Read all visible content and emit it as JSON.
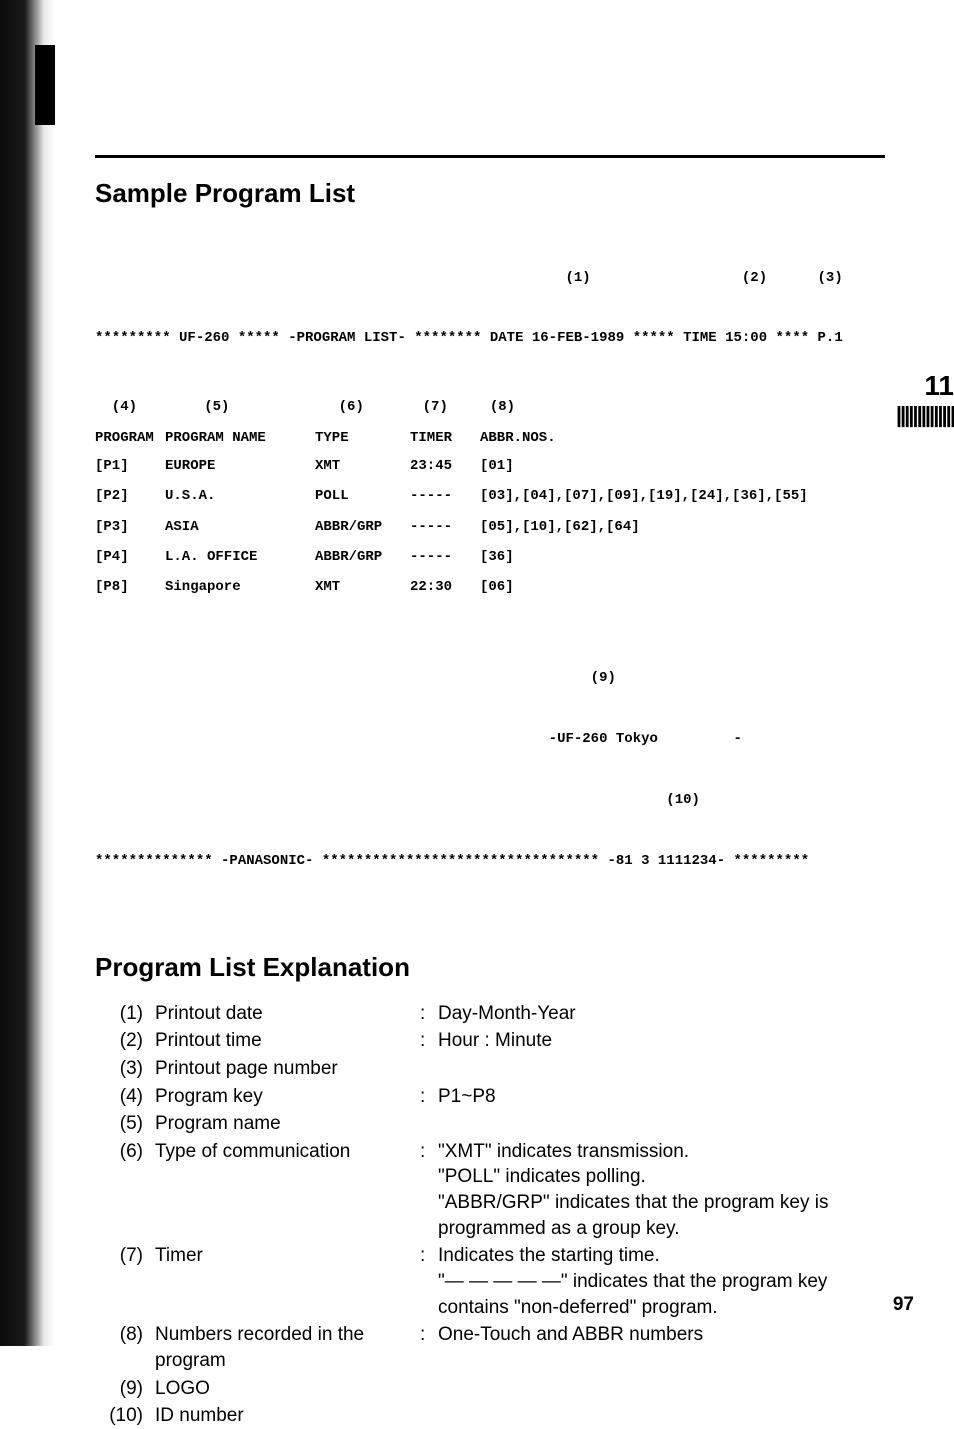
{
  "titles": {
    "sample": "Sample Program List",
    "explanation": "Program List Explanation"
  },
  "side": {
    "num": "11",
    "bars": "||||||||||||||"
  },
  "page_number": "97",
  "printout": {
    "marker_line": "                                                        (1)                  (2)      (3)",
    "header_line": "********* UF-260 ***** -PROGRAM LIST- ******** DATE 16-FEB-1989 ***** TIME 15:00 **** P.1",
    "col_tag_line": "  (4)        (5)             (6)       (7)     (8)",
    "col_head": {
      "program": "PROGRAM",
      "name": "PROGRAM NAME",
      "type": "TYPE",
      "timer": "TIMER",
      "abbr": "ABBR.NOS."
    },
    "rows": [
      {
        "program": "[P1]",
        "name": "EUROPE",
        "type": "XMT",
        "timer": "23:45",
        "abbr": "[01]"
      },
      {
        "program": "[P2]",
        "name": "U.S.A.",
        "type": "POLL",
        "timer": "-----",
        "abbr": "[03],[04],[07],[09],[19],[24],[36],[55]"
      },
      {
        "program": "[P3]",
        "name": "ASIA",
        "type": "ABBR/GRP",
        "timer": "-----",
        "abbr": "[05],[10],[62],[64]"
      },
      {
        "program": "[P4]",
        "name": "L.A. OFFICE",
        "type": "ABBR/GRP",
        "timer": "-----",
        "abbr": "[36]"
      },
      {
        "program": "[P8]",
        "name": "Singapore",
        "type": "XMT",
        "timer": "22:30",
        "abbr": "[06]"
      }
    ],
    "footer1_tag": "                                                           (9)",
    "footer1": "                                                      -UF-260 Tokyo         -",
    "footer2_tag": "                                                                    (10)",
    "footer2": "************** -PANASONIC- ********************************* -81 3 1111234- *********"
  },
  "explanation_rows": [
    {
      "num": "(1)",
      "label": "Printout date",
      "colon": ":",
      "value": "Day-Month-Year"
    },
    {
      "num": "(2)",
      "label": "Printout time",
      "colon": ":",
      "value": "Hour : Minute"
    },
    {
      "num": "(3)",
      "label": "Printout page number",
      "colon": "",
      "value": ""
    },
    {
      "num": "(4)",
      "label": "Program key",
      "colon": ":",
      "value": "P1~P8"
    },
    {
      "num": "(5)",
      "label": "Program name",
      "colon": "",
      "value": ""
    },
    {
      "num": "(6)",
      "label": "Type of communication",
      "colon": ":",
      "value": "\"XMT\" indicates transmission.\n\"POLL\" indicates polling.\n\"ABBR/GRP\" indicates that the program key is programmed as a group key."
    },
    {
      "num": "(7)",
      "label": "Timer",
      "colon": ":",
      "value": "Indicates the starting time.\n\"— — — — —\" indicates that the program key contains \"non-deferred\" program."
    },
    {
      "num": "(8)",
      "label": "Numbers recorded in the program",
      "colon": ":",
      "value": "One-Touch and ABBR numbers"
    },
    {
      "num": "(9)",
      "label": "LOGO",
      "colon": "",
      "value": ""
    },
    {
      "num": "(10)",
      "label": "ID number",
      "colon": "",
      "value": ""
    }
  ]
}
